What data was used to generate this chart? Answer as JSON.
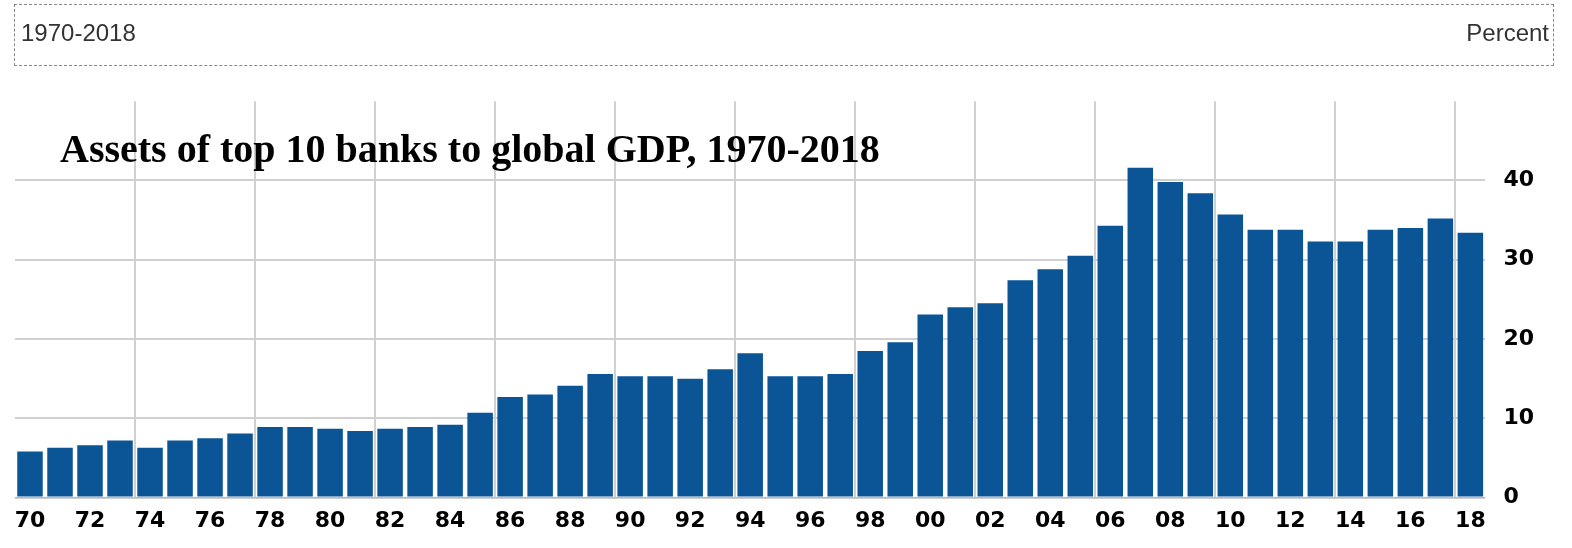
{
  "chart_data": {
    "type": "bar",
    "title": "Assets of top 10 banks to global GDP, 1970-2018",
    "annotations": [
      "1970-2018",
      "Percent"
    ],
    "categories": [
      "70",
      null,
      "72",
      null,
      "74",
      null,
      "76",
      null,
      "78",
      null,
      "80",
      null,
      "82",
      null,
      "84",
      null,
      "86",
      null,
      "88",
      null,
      "90",
      null,
      "92",
      null,
      "94",
      null,
      "96",
      null,
      "98",
      null,
      "00",
      null,
      "02",
      null,
      "04",
      null,
      "06",
      null,
      "08",
      null,
      "10",
      null,
      "12",
      null,
      "14",
      null,
      "16",
      null,
      "18"
    ],
    "values": [
      5.8,
      6.3,
      6.6,
      7.2,
      6.3,
      7.2,
      7.5,
      8.1,
      8.9,
      8.9,
      8.7,
      8.4,
      8.7,
      8.9,
      9.2,
      10.7,
      12.7,
      13.0,
      14.1,
      15.6,
      15.3,
      15.3,
      15.0,
      16.2,
      18.2,
      15.3,
      15.3,
      15.6,
      18.5,
      19.6,
      23.1,
      24.0,
      24.5,
      27.4,
      28.8,
      30.5,
      34.3,
      41.6,
      39.8,
      38.4,
      35.7,
      33.8,
      33.8,
      32.3,
      32.3,
      33.8,
      34.0,
      35.2,
      33.4
    ],
    "color": "#0b5597",
    "ylim": [
      0,
      50
    ],
    "yticks": [
      0,
      10,
      20,
      30,
      40
    ],
    "grid": true,
    "legend": false
  }
}
